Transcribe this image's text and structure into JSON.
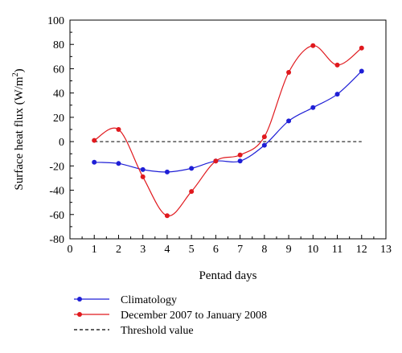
{
  "chart_data": {
    "type": "line",
    "xlabel": "Pentad days",
    "ylabel": "Surface heat flux (W/m²)",
    "ylabel_parts": {
      "main": "Surface heat flux (W/m",
      "sup": "2",
      "end": ")"
    },
    "xlim": [
      0,
      13
    ],
    "ylim": [
      -80,
      100
    ],
    "x_ticks": [
      0,
      1,
      2,
      3,
      4,
      5,
      6,
      7,
      8,
      9,
      10,
      11,
      12,
      13
    ],
    "y_ticks": [
      -80,
      -60,
      -40,
      -20,
      0,
      20,
      40,
      60,
      80,
      100
    ],
    "grid": false,
    "legend_position": "bottom-left-below",
    "series": [
      {
        "name": "Climatology",
        "color": "#1f1fd6",
        "marker": "circle",
        "x": [
          1,
          2,
          3,
          4,
          5,
          6,
          7,
          8,
          9,
          10,
          11,
          12
        ],
        "y": [
          -17,
          -18,
          -23,
          -25,
          -22,
          -16,
          -16,
          -3,
          17,
          28,
          39,
          58
        ]
      },
      {
        "name": "December 2007 to January 2008",
        "color": "#e0191e",
        "marker": "circle",
        "x": [
          1,
          2,
          3,
          4,
          5,
          6,
          7,
          8,
          9,
          10,
          11,
          12
        ],
        "y": [
          1,
          10,
          -29,
          -61,
          -41,
          -16,
          -11,
          4,
          57,
          79,
          63,
          77
        ]
      }
    ],
    "threshold": {
      "name": "Threshold value",
      "y": 0,
      "x_range": [
        1,
        12
      ],
      "style": "dashed",
      "color": "#000000"
    }
  }
}
